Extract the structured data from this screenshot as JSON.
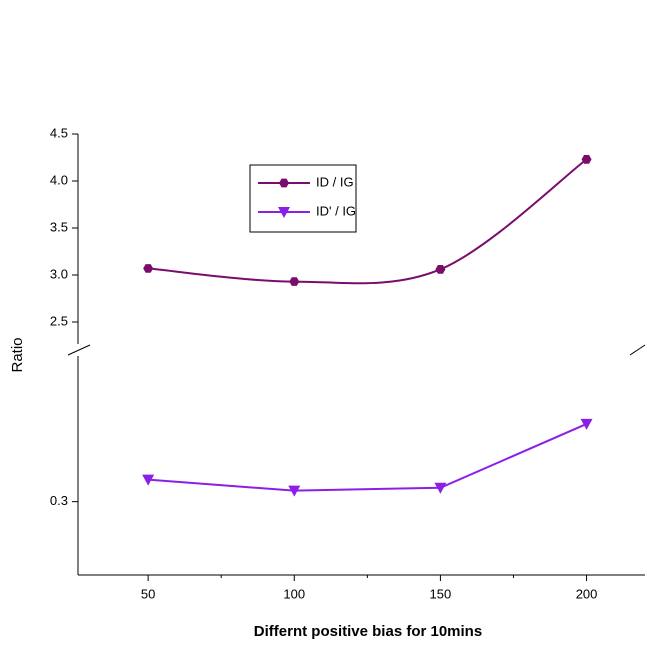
{
  "chart_data": {
    "type": "line",
    "x_label": "Differnt positive bias for 10mins",
    "y_label": "Ratio",
    "x": [
      50,
      100,
      150,
      200
    ],
    "xlim": [
      26,
      220
    ],
    "xticks": [
      50,
      100,
      150,
      200
    ],
    "xminor": [
      75,
      125,
      175
    ],
    "panels": [
      {
        "ylim": [
          2.25,
          4.5
        ],
        "yticks": [
          2.5,
          {
            "value": 3,
            "label": "3.0"
          },
          3.5,
          {
            "value": 4,
            "label": "4.0"
          },
          4.5
        ]
      },
      {
        "ylim": [
          0.29,
          0.32
        ],
        "yticks": [
          0.3
        ]
      }
    ],
    "series": [
      {
        "name": "ID / IG",
        "color": "#7a0c6c",
        "marker": "hexagon",
        "panel": 0,
        "values": [
          3.07,
          2.93,
          3.06,
          4.23
        ]
      },
      {
        "name": "ID' / IG",
        "color": "#8b1fe8",
        "marker": "triangle-down",
        "panel": 1,
        "values": [
          0.303,
          0.3015,
          0.3019,
          0.3106
        ]
      }
    ]
  }
}
